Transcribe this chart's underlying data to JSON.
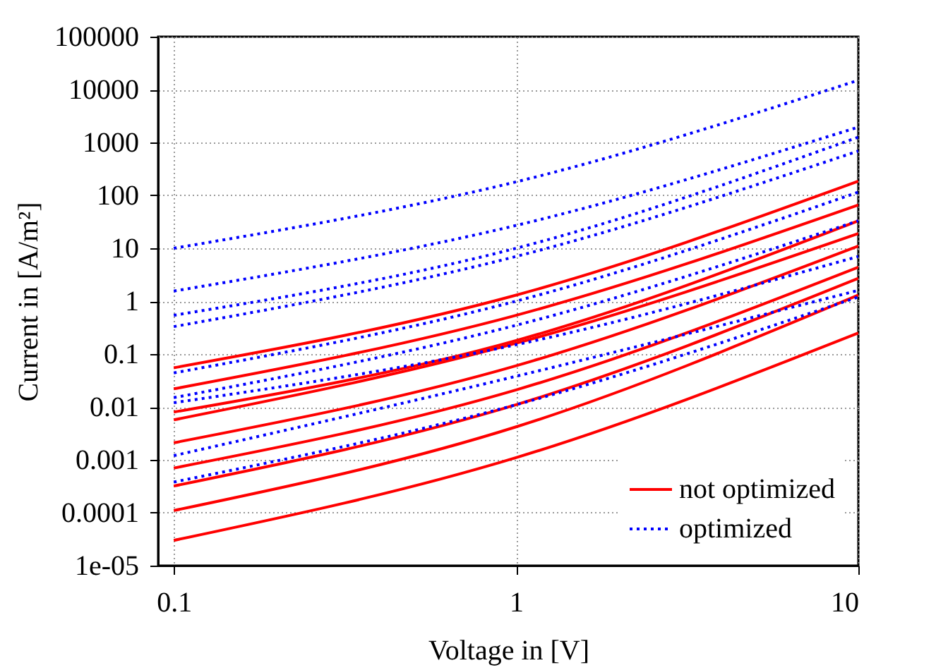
{
  "chart_data": {
    "type": "line",
    "xlabel": "Voltage in [V]",
    "ylabel": "Current in [A/m²]",
    "x": [
      0.1,
      1,
      10
    ],
    "series": [
      {
        "name": "not optimized",
        "color": "#ff0000",
        "line_style": "solid",
        "values": [
          0.055,
          1.3,
          186
        ]
      },
      {
        "color": "#ff0000",
        "line_style": "solid",
        "values": [
          0.022,
          0.54,
          66
        ]
      },
      {
        "color": "#ff0000",
        "line_style": "solid",
        "values": [
          0.008,
          0.18,
          33
        ]
      },
      {
        "color": "#ff0000",
        "line_style": "solid",
        "values": [
          0.0057,
          0.16,
          19
        ]
      },
      {
        "color": "#ff0000",
        "line_style": "solid",
        "values": [
          0.0021,
          0.06,
          11
        ]
      },
      {
        "color": "#ff0000",
        "line_style": "solid",
        "values": [
          0.0007,
          0.021,
          4.4
        ]
      },
      {
        "color": "#ff0000",
        "line_style": "solid",
        "values": [
          0.00032,
          0.011,
          2.7
        ]
      },
      {
        "color": "#ff0000",
        "line_style": "solid",
        "values": [
          0.00011,
          0.0042,
          1.3
        ]
      },
      {
        "color": "#ff0000",
        "line_style": "solid",
        "values": [
          3e-05,
          0.0011,
          0.25
        ]
      },
      {
        "name": "optimized",
        "color": "#0000ff",
        "line_style": "dotted",
        "values": [
          10,
          180,
          15000
        ]
      },
      {
        "color": "#0000ff",
        "line_style": "dotted",
        "values": [
          1.55,
          27,
          1950
        ]
      },
      {
        "color": "#0000ff",
        "line_style": "dotted",
        "values": [
          0.54,
          10,
          1260
        ]
      },
      {
        "color": "#0000ff",
        "line_style": "dotted",
        "values": [
          0.33,
          7,
          690
        ]
      },
      {
        "color": "#0000ff",
        "line_style": "dotted",
        "values": [
          0.044,
          1.0,
          115
        ]
      },
      {
        "color": "#0000ff",
        "line_style": "dotted",
        "values": [
          0.015,
          0.35,
          33
        ]
      },
      {
        "color": "#0000ff",
        "line_style": "dotted",
        "values": [
          0.012,
          0.15,
          7
        ]
      },
      {
        "color": "#0000ff",
        "line_style": "dotted",
        "values": [
          0.0012,
          0.038,
          1.6
        ]
      },
      {
        "color": "#0000ff",
        "line_style": "dotted",
        "values": [
          0.00038,
          0.011,
          1.2
        ]
      }
    ],
    "xlim": [
      0.09,
      10
    ],
    "xticks": [
      0.1,
      1,
      10
    ],
    "ylim": [
      1e-05,
      100000
    ],
    "yticks": [
      {
        "value": 1e-05,
        "label": "1e-05"
      },
      0.0001,
      0.001,
      0.01,
      0.1,
      1,
      10,
      100,
      1000,
      10000,
      100000
    ],
    "log": "xy",
    "grid": true,
    "legend": "bottom right"
  }
}
